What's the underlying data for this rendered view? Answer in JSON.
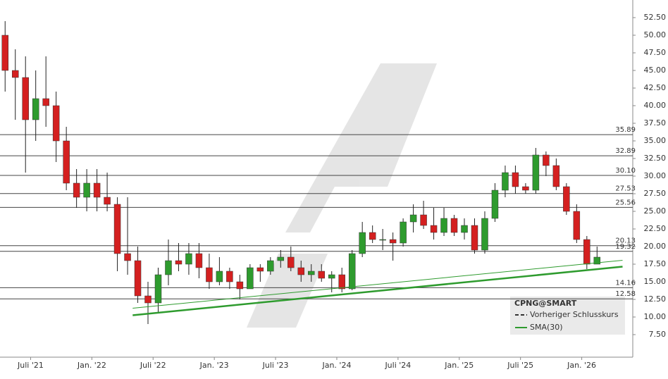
{
  "chart_data": {
    "type": "candlestick",
    "ticker": "CPNG@SMART",
    "x": [
      "2021-04",
      "2021-05",
      "2021-06",
      "2021-07",
      "2021-08",
      "2021-09",
      "2021-10",
      "2021-11",
      "2021-12",
      "2022-01",
      "2022-02",
      "2022-03",
      "2022-04",
      "2022-05",
      "2022-06",
      "2022-07",
      "2022-08",
      "2022-09",
      "2022-10",
      "2022-11",
      "2022-12",
      "2023-01",
      "2023-02",
      "2023-03",
      "2023-04",
      "2023-05",
      "2023-06",
      "2023-07",
      "2023-08",
      "2023-09",
      "2023-10",
      "2023-11",
      "2023-12",
      "2024-01",
      "2024-02",
      "2024-03",
      "2024-04",
      "2024-05",
      "2024-06",
      "2024-07",
      "2024-08",
      "2024-09",
      "2024-10",
      "2024-11",
      "2024-12",
      "2025-01",
      "2025-02",
      "2025-03",
      "2025-04",
      "2025-05",
      "2025-06",
      "2025-07",
      "2025-08",
      "2025-09",
      "2025-10",
      "2025-11",
      "2025-12",
      "2026-01",
      "2026-02"
    ],
    "open": [
      50,
      45,
      44,
      38,
      41,
      40,
      35,
      29,
      27,
      29,
      27,
      26,
      19,
      18,
      13,
      12,
      16,
      18,
      17.5,
      19,
      17,
      15,
      16.5,
      15,
      14,
      17,
      16.5,
      18,
      18.5,
      17,
      16,
      16.5,
      15.5,
      16,
      14,
      19,
      22,
      21,
      21,
      20.5,
      23.5,
      24.5,
      23,
      22,
      24,
      22,
      23,
      19.5,
      24,
      28,
      30.5,
      28.5,
      28,
      33,
      31.5,
      28.5,
      25,
      21,
      17.5
    ],
    "high": [
      52,
      48,
      47,
      45,
      47,
      42,
      37,
      31,
      31,
      31,
      30.5,
      27,
      27,
      20,
      15,
      17,
      21,
      20.5,
      20.5,
      20.5,
      19,
      18.5,
      17,
      16,
      17.5,
      17.5,
      18.5,
      19.5,
      20,
      18,
      17.5,
      17.5,
      16.5,
      17,
      19.5,
      23.5,
      23,
      22.5,
      22,
      24,
      26,
      26.5,
      25.5,
      25.5,
      24.5,
      24,
      24,
      25,
      29,
      31.5,
      31.5,
      29,
      34,
      33.5,
      32.5,
      29,
      26,
      21.5,
      20
    ],
    "low": [
      42,
      38,
      30.5,
      35,
      37,
      32,
      28,
      25.5,
      25,
      25,
      25,
      16.5,
      16,
      12,
      9,
      10.5,
      14.5,
      16.5,
      16,
      15.5,
      14,
      14.5,
      14,
      12.5,
      14,
      15,
      16,
      17,
      16.5,
      15,
      15,
      15,
      13.5,
      13.5,
      13.8,
      18.5,
      20.5,
      19.5,
      18,
      20,
      22,
      22.5,
      21,
      21.5,
      21.5,
      21,
      19,
      19,
      23.5,
      27,
      27.5,
      27.5,
      27.5,
      30,
      28,
      24.5,
      20.5,
      16.8,
      17.5
    ],
    "close": [
      45,
      44,
      38,
      41,
      40,
      35,
      29,
      27,
      29,
      27,
      26,
      19,
      18,
      13,
      12,
      16,
      18,
      17.5,
      19,
      17,
      15,
      16.5,
      15,
      14,
      17,
      16.5,
      18,
      18.5,
      17,
      16,
      16.5,
      15.5,
      16,
      14,
      19,
      22,
      21,
      21,
      20.5,
      23.5,
      24.5,
      23,
      22,
      24,
      22,
      23,
      19.5,
      24,
      28,
      30.5,
      28.5,
      28,
      33,
      31.5,
      28.5,
      25,
      21,
      17.5,
      18.5
    ],
    "up_color": "#2e9b2e",
    "down_color": "#d42020",
    "xlim": [
      "2021-04",
      "2026-06"
    ],
    "xticks": [
      {
        "value": "2021-07",
        "label": "Juli '21"
      },
      {
        "value": "2022-01",
        "label": "Jan. '22"
      },
      {
        "value": "2022-07",
        "label": "Juli '22"
      },
      {
        "value": "2023-01",
        "label": "Jan. '23"
      },
      {
        "value": "2023-07",
        "label": "Juli '23"
      },
      {
        "value": "2024-01",
        "label": "Jan. '24"
      },
      {
        "value": "2024-07",
        "label": "Juli '24"
      },
      {
        "value": "2025-01",
        "label": "Jan. '25"
      },
      {
        "value": "2025-07",
        "label": "Juli '25"
      },
      {
        "value": "2026-01",
        "label": "Jan. '26"
      }
    ],
    "ylim": [
      4.3,
      55
    ],
    "yticks": [
      {
        "value": 7.5,
        "label": "7.50"
      },
      {
        "value": 10,
        "label": "10.00"
      },
      {
        "value": 12.5,
        "label": "12.50"
      },
      {
        "value": 15,
        "label": "15.00"
      },
      {
        "value": 17.5,
        "label": "17.50"
      },
      {
        "value": 20,
        "label": "20.00"
      },
      {
        "value": 22.5,
        "label": "22.50"
      },
      {
        "value": 25,
        "label": "25.00"
      },
      {
        "value": 27.5,
        "label": "27.50"
      },
      {
        "value": 30,
        "label": "30.00"
      },
      {
        "value": 32.5,
        "label": "32.50"
      },
      {
        "value": 35,
        "label": "35.00"
      },
      {
        "value": 37.5,
        "label": "37.50"
      },
      {
        "value": 40,
        "label": "40.00"
      },
      {
        "value": 42.5,
        "label": "42.50"
      },
      {
        "value": 45,
        "label": "45.00"
      },
      {
        "value": 47.5,
        "label": "47.50"
      },
      {
        "value": 50,
        "label": "50.00"
      },
      {
        "value": 52.5,
        "label": "52.50"
      }
    ],
    "levels": [
      {
        "value": 35.89,
        "label": "35.89"
      },
      {
        "value": 32.89,
        "label": "32.89"
      },
      {
        "value": 30.1,
        "label": "30.10"
      },
      {
        "value": 27.53,
        "label": "27.53"
      },
      {
        "value": 25.56,
        "label": "25.56"
      },
      {
        "value": 20.13,
        "label": "20.13"
      },
      {
        "value": 19.32,
        "label": "19.32"
      },
      {
        "value": 14.16,
        "label": "14.16"
      },
      {
        "value": 12.58,
        "label": "12.58"
      }
    ],
    "trendlines": [
      {
        "x": [
          "2022-05",
          "2026-05"
        ],
        "values": [
          11.25,
          18.05
        ],
        "color": "#2e9b2e"
      },
      {
        "x": [
          "2022-05",
          "2026-05"
        ],
        "values": [
          10.25,
          17.15
        ],
        "color": "#2e9b2e"
      }
    ],
    "legend": [
      {
        "name": "Vorheriger Schlusskurs",
        "color": "#333333"
      },
      {
        "name": "SMA(30)",
        "color": "#2e9b2e"
      }
    ]
  }
}
